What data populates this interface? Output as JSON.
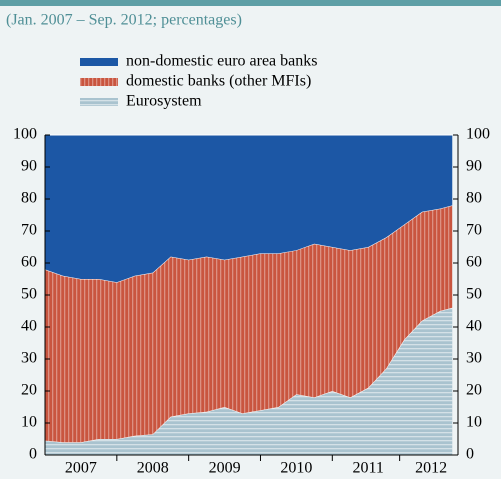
{
  "chart_data": {
    "type": "stacked_area",
    "subtitle": "(Jan. 2007 – Sep. 2012; percentages)",
    "x": [
      2007,
      2007.25,
      2007.5,
      2007.75,
      2008,
      2008.25,
      2008.5,
      2008.75,
      2009,
      2009.25,
      2009.5,
      2009.75,
      2010,
      2010.25,
      2010.5,
      2010.75,
      2011,
      2011.25,
      2011.5,
      2011.75,
      2012,
      2012.25,
      2012.5,
      2012.67
    ],
    "series": [
      {
        "name": "Eurosystem",
        "color": "#a9c3cf",
        "pattern": "horizontal",
        "values": [
          4.5,
          4,
          4,
          5,
          5,
          6,
          6.5,
          12,
          13,
          13.5,
          15,
          13,
          14,
          15,
          19,
          18,
          20,
          18,
          21,
          27,
          36,
          42,
          45,
          46
        ]
      },
      {
        "name": "domestic banks (other MFIs)",
        "color": "#c9553f",
        "pattern": "vertical",
        "values": [
          53.5,
          52,
          51,
          50,
          49,
          50,
          50.5,
          50,
          48,
          48.5,
          46,
          49,
          49,
          48,
          45,
          48,
          45,
          46,
          44,
          41,
          36,
          34,
          32,
          32
        ]
      },
      {
        "name": "non-domestic euro area banks",
        "color": "#1c57a5",
        "values": [
          42,
          44,
          45,
          45,
          46,
          44,
          43,
          38,
          39,
          38,
          39,
          38,
          37,
          37,
          36,
          34,
          35,
          36,
          35,
          32,
          28,
          24,
          23,
          22
        ]
      }
    ],
    "xlim": [
      2007,
      2012.75
    ],
    "xticks": [
      {
        "value": 2007.5,
        "label": "2007"
      },
      {
        "value": 2008.5,
        "label": "2008"
      },
      {
        "value": 2009.5,
        "label": "2009"
      },
      {
        "value": 2010.5,
        "label": "2010"
      },
      {
        "value": 2011.5,
        "label": "2011"
      },
      {
        "value": 2012.375,
        "label": "2012"
      }
    ],
    "ylim": [
      0,
      100
    ],
    "yticks": [
      0,
      10,
      20,
      30,
      40,
      50,
      60,
      70,
      80,
      90,
      100
    ],
    "y2lim": [
      0,
      100
    ],
    "y2ticks": [
      0,
      10,
      20,
      30,
      40,
      50,
      60,
      70,
      80,
      90,
      100
    ]
  }
}
